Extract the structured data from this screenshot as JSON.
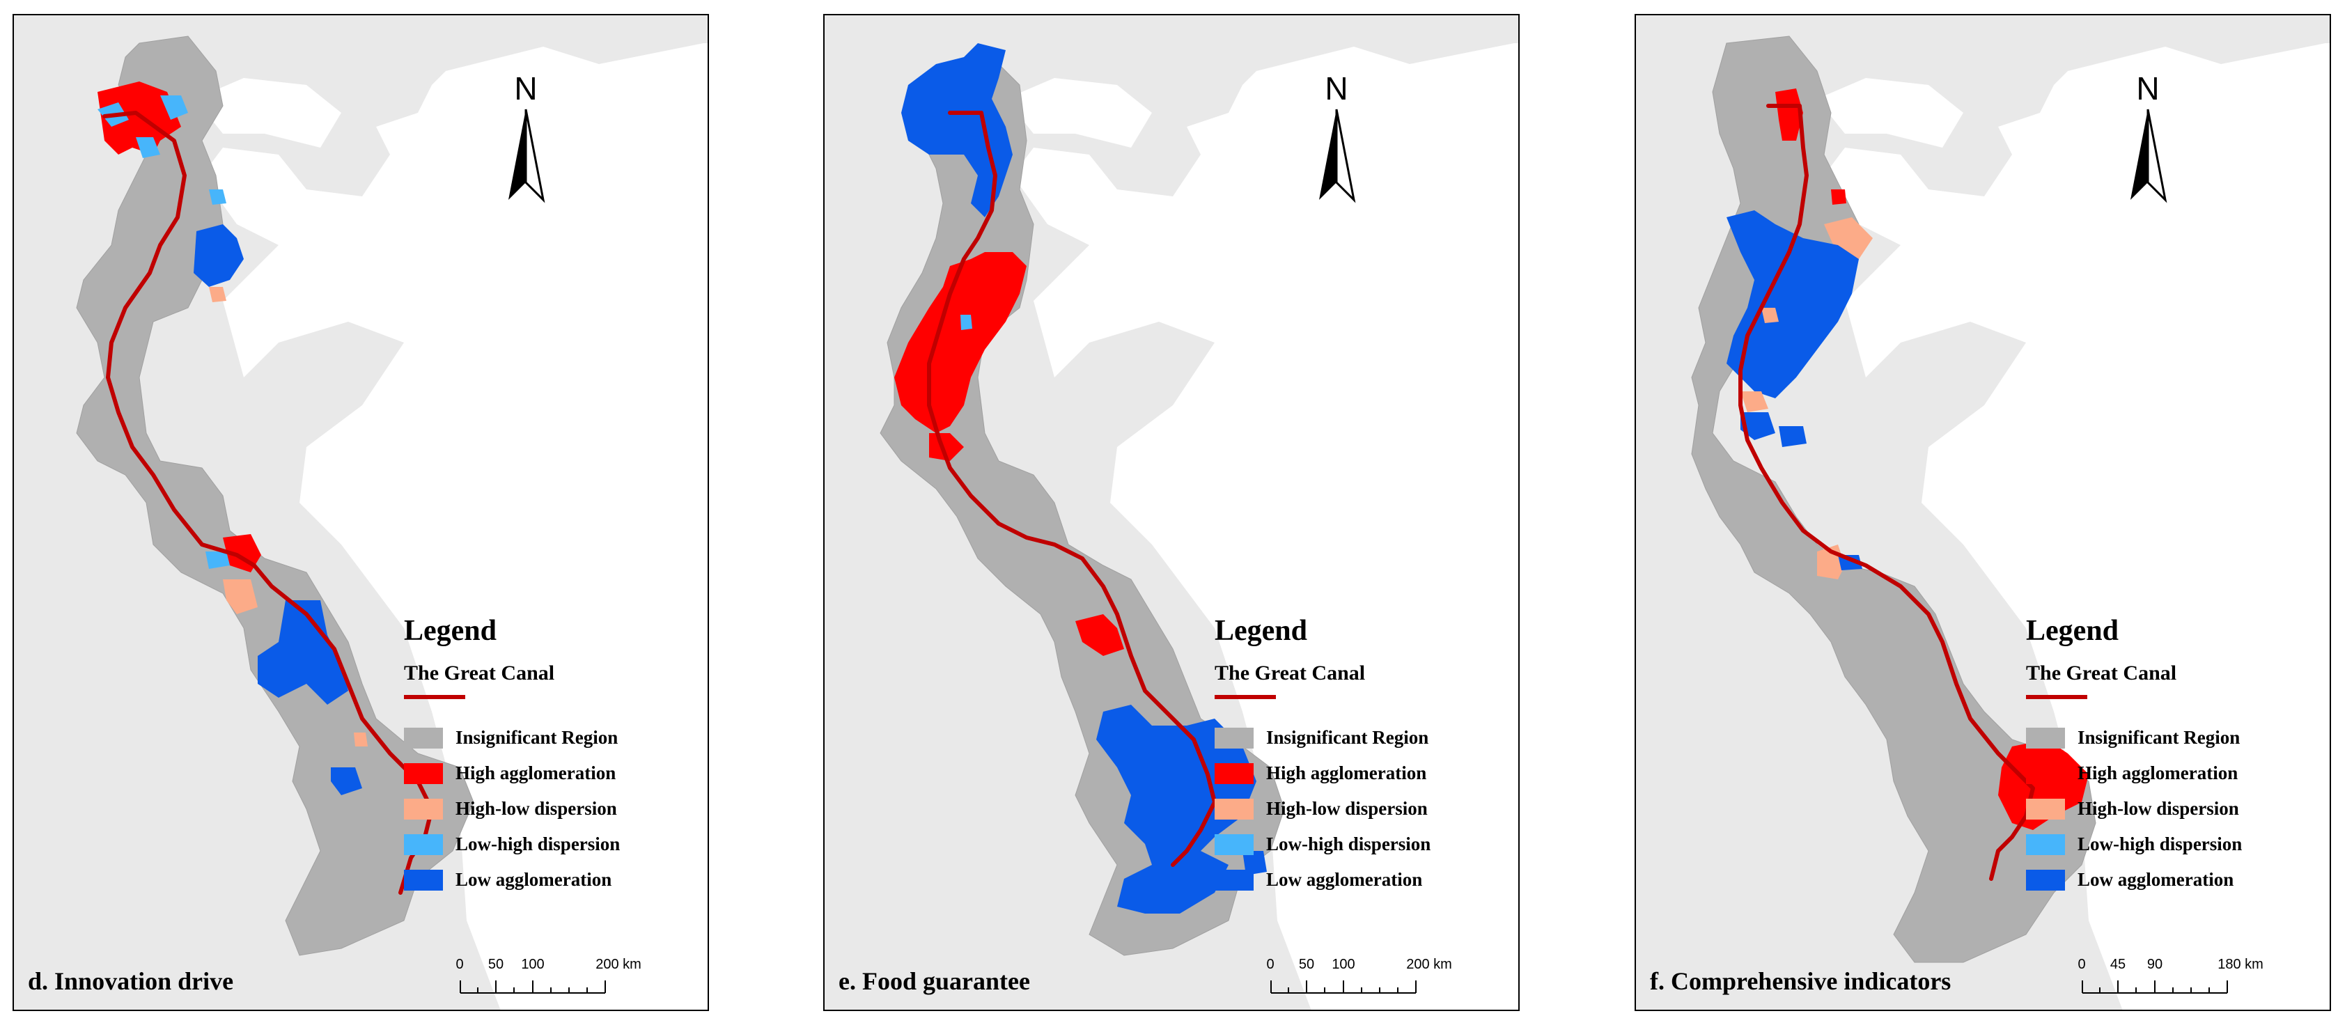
{
  "colors": {
    "insignificant": "#b0b0b0",
    "high_agglomeration": "#ff0000",
    "high_low_dispersion": "#fcab88",
    "low_high_dispersion": "#47b5fb",
    "low_agglomeration": "#0a5be8",
    "canal": "#c00000",
    "sea": "#ffffff",
    "land_background": "#e9e9e9"
  },
  "legend": {
    "title": "Legend",
    "canal_label": "The Great Canal",
    "items": [
      {
        "label": "Insignificant Region",
        "color": "#b0b0b0"
      },
      {
        "label": "High agglomeration",
        "color": "#ff0000"
      },
      {
        "label": "High-low dispersion",
        "color": "#fcab88"
      },
      {
        "label": "Low-high dispersion",
        "color": "#47b5fb"
      },
      {
        "label": "Low agglomeration",
        "color": "#0a5be8"
      }
    ]
  },
  "north_arrow": {
    "letter": "N"
  },
  "panels": [
    {
      "title": "d. Innovation drive",
      "scale_labels": [
        "0",
        "50",
        "100",
        "200 km"
      ]
    },
    {
      "title": "e. Food guarantee",
      "scale_labels": [
        "0",
        "50",
        "100",
        "200 km"
      ]
    },
    {
      "title": "f. Comprehensive indicators",
      "scale_labels": [
        "0",
        "45",
        "90",
        "180 km"
      ]
    }
  ]
}
